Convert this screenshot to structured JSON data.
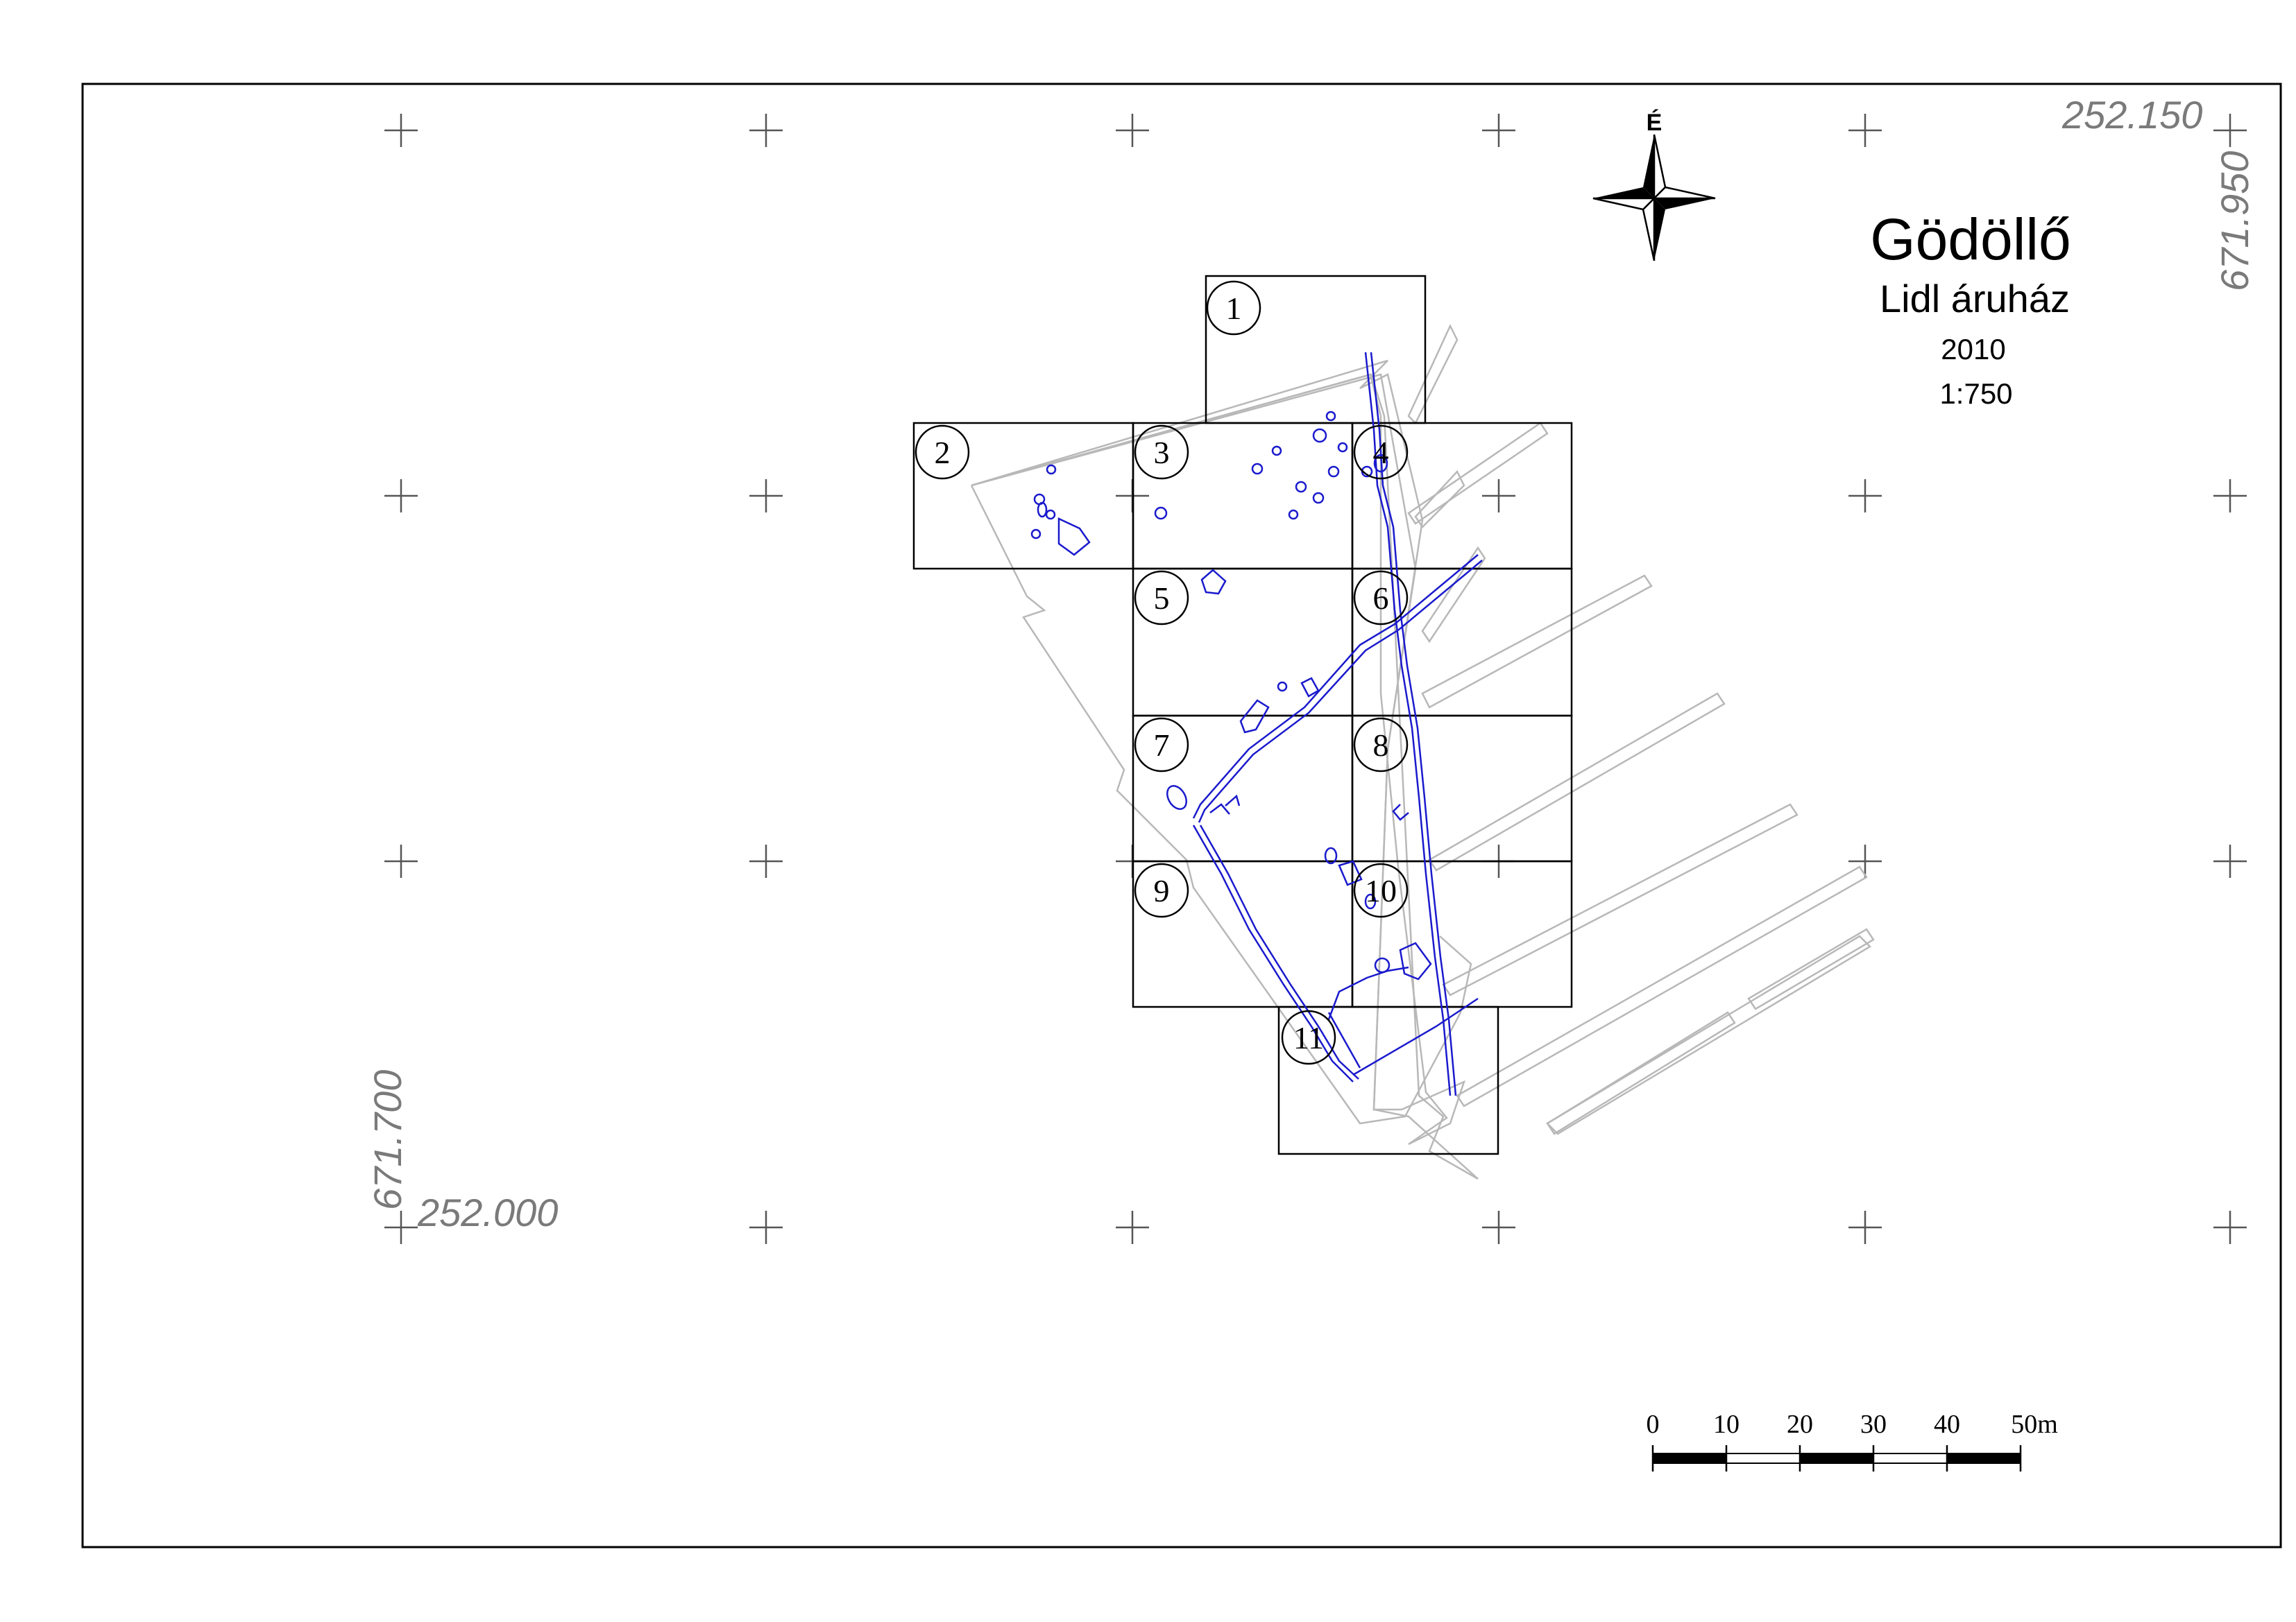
{
  "map": {
    "title": "Gödöllő",
    "subtitle": "Lidl áruház",
    "year": "2010",
    "scale": "1:750",
    "north_label": "É",
    "coordinates": {
      "top_right_easting": "252.150",
      "top_right_northing": "671.950",
      "bottom_left_northing": "671.700",
      "bottom_left_easting": "252.000"
    },
    "sheets": [
      "1",
      "2",
      "3",
      "4",
      "5",
      "6",
      "7",
      "8",
      "9",
      "10",
      "11"
    ],
    "scale_bar": {
      "labels": [
        "0",
        "10",
        "20",
        "30",
        "40",
        "50m"
      ]
    },
    "icons": {
      "north": "north-arrow-icon",
      "grid_cross": "grid-cross-icon"
    },
    "colors": {
      "features": "#1a1acd",
      "survey_outline": "#b8b8b8",
      "frame": "#000000",
      "coordinates": "#7a7a7a"
    }
  }
}
